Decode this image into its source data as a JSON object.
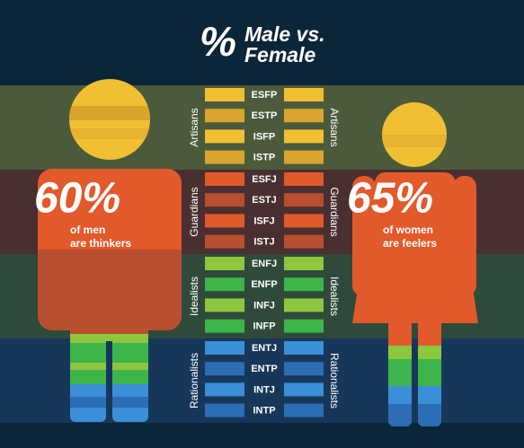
{
  "title": {
    "symbol": "%",
    "line1": "Male vs.",
    "line2": "Female"
  },
  "groups": [
    {
      "name": "Artisans",
      "band": "#4b5a3b",
      "colors": [
        "#f0c032",
        "#d9a52c"
      ],
      "types": [
        "ESFP",
        "ESTP",
        "ISFP",
        "ISTP"
      ]
    },
    {
      "name": "Guardians",
      "band": "#4a2f30",
      "colors": [
        "#e2592b",
        "#b94f31"
      ],
      "types": [
        "ESFJ",
        "ESTJ",
        "ISFJ",
        "ISTJ"
      ]
    },
    {
      "name": "Idealists",
      "band": "#2f4a3a",
      "colors": [
        "#8dc63f",
        "#3db54a"
      ],
      "types": [
        "ENFJ",
        "ENFP",
        "INFJ",
        "INFP"
      ]
    },
    {
      "name": "Rationalists",
      "band": "#17375a",
      "colors": [
        "#3a8fd8",
        "#2c6db5"
      ],
      "types": [
        "ENTJ",
        "ENTP",
        "INTJ",
        "INTP"
      ]
    }
  ],
  "male": {
    "percent": "60%",
    "caption1": "of men",
    "caption2": "are thinkers"
  },
  "female": {
    "percent": "65%",
    "caption1": "of women",
    "caption2": "are feelers"
  }
}
